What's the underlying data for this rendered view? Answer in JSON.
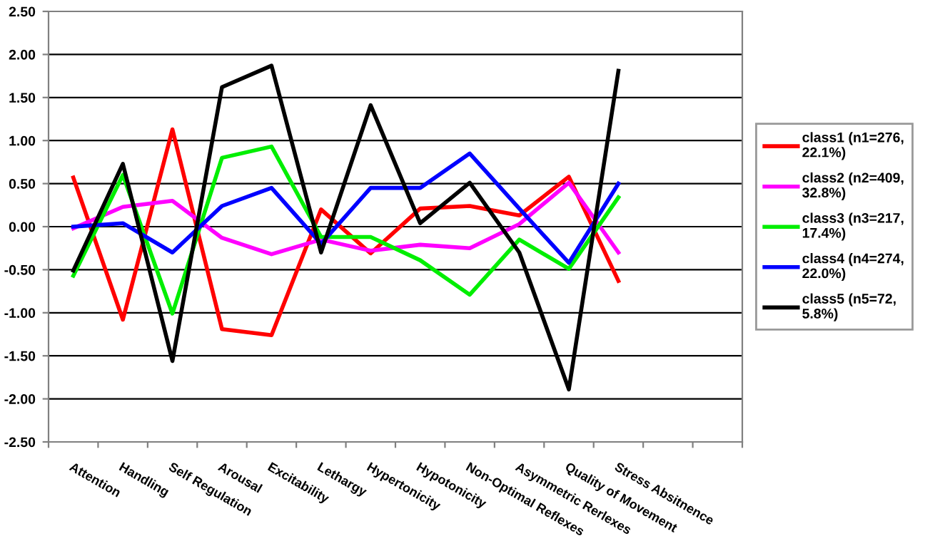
{
  "chart_data": {
    "type": "line",
    "categories": [
      "Attention",
      "Handling",
      "Self Regulation",
      "Arousal",
      "Excitability",
      "Lethargy",
      "Hypertonicity",
      "Hypotonicity",
      "Non-Optimal Reflexes",
      "Asymmetric Rerlexes",
      "Quality of Movement",
      "Stress Absitnence",
      null,
      null
    ],
    "series": [
      {
        "name": "class1 (n1=276, 22.1%)",
        "color": "#ff0000",
        "values": [
          0.57,
          -1.08,
          1.13,
          -1.19,
          -1.26,
          0.2,
          -0.31,
          0.21,
          0.24,
          0.13,
          0.58,
          -0.63,
          null,
          null
        ]
      },
      {
        "name": "class2 (n2=409, 32.8%)",
        "color": "#ff00ff",
        "values": [
          -0.02,
          0.23,
          0.3,
          -0.13,
          -0.32,
          -0.15,
          -0.28,
          -0.21,
          -0.25,
          0.03,
          0.51,
          -0.3,
          null,
          null
        ]
      },
      {
        "name": "class3 (n3=217, 17.4%)",
        "color": "#00ee00",
        "values": [
          -0.57,
          0.6,
          -1.01,
          0.8,
          0.93,
          -0.12,
          -0.12,
          -0.39,
          -0.79,
          -0.15,
          -0.49,
          0.34,
          null,
          null
        ]
      },
      {
        "name": "class4 (n4=274, 22.0%)",
        "color": "#0000ff",
        "values": [
          0.0,
          0.04,
          -0.3,
          0.24,
          0.45,
          -0.2,
          0.45,
          0.45,
          0.85,
          0.21,
          -0.42,
          0.5,
          null,
          null
        ]
      },
      {
        "name": "class5 (n5=72, 5.8%)",
        "color": "#000000",
        "values": [
          -0.51,
          0.73,
          -1.56,
          1.62,
          1.87,
          -0.3,
          1.41,
          0.04,
          0.51,
          -0.3,
          -1.89,
          1.81,
          null,
          null
        ]
      }
    ],
    "ylim": [
      -2.5,
      2.5
    ],
    "yticks": [
      {
        "value": -2.5,
        "label": "-2.50"
      },
      {
        "value": -2.0,
        "label": "-2.00"
      },
      {
        "value": -1.5,
        "label": "-1.50"
      },
      {
        "value": -1.0,
        "label": "-1.00"
      },
      {
        "value": -0.5,
        "label": "-0.50"
      },
      {
        "value": 0,
        "label": "0.00"
      },
      {
        "value": 0.5,
        "label": "0.50"
      },
      {
        "value": 1.0,
        "label": "1.00"
      },
      {
        "value": 1.5,
        "label": "1.50"
      },
      {
        "value": 2.0,
        "label": "2.00"
      },
      {
        "value": 2.5,
        "label": "2.50"
      }
    ],
    "grid": "y",
    "legend": "right",
    "marker": "none",
    "line_style": "solid"
  }
}
